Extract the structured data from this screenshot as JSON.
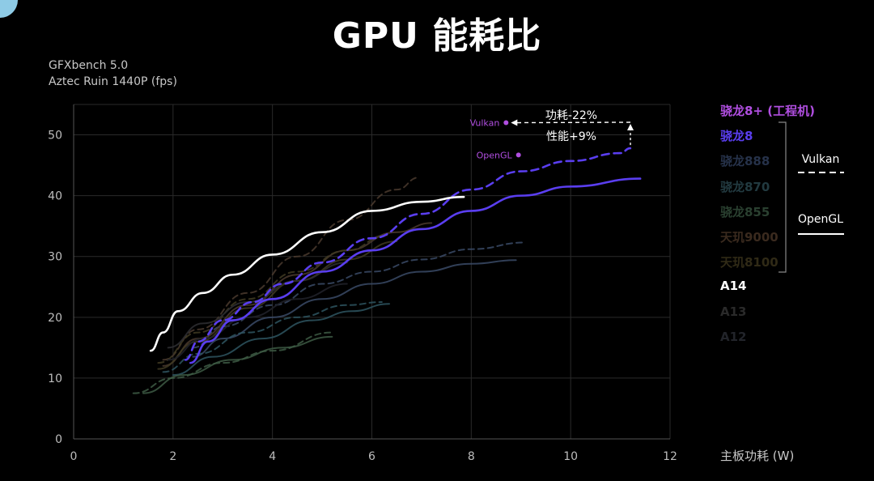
{
  "title": "GPU 能耗比",
  "subtitle": [
    "GFXbench 5.0",
    "Aztec Ruin 1440P (fps)"
  ],
  "chart_data": {
    "type": "line",
    "title": "GPU 能耗比",
    "xlabel": "主板功耗 (W)",
    "ylabel": "",
    "xlim": [
      0,
      12
    ],
    "ylim": [
      0,
      55
    ],
    "xticks": [
      0,
      2,
      4,
      6,
      8,
      10,
      12
    ],
    "yticks": [
      0,
      10,
      20,
      30,
      40,
      50
    ],
    "grid": true,
    "legend_position": "right",
    "series": [
      {
        "name": "骁龙8+ (工程机)",
        "api": "Vulkan",
        "color": "#b04ee0",
        "dash": true,
        "opacity": 1,
        "points": []
      },
      {
        "name": "骁龙8",
        "api": "Vulkan",
        "color": "#5a3ef0",
        "dash": true,
        "opacity": 1,
        "points": [
          [
            2.25,
            13
          ],
          [
            2.5,
            16
          ],
          [
            3.0,
            19.5
          ],
          [
            3.6,
            22.5
          ],
          [
            4.2,
            25.5
          ],
          [
            5.0,
            29
          ],
          [
            6.0,
            33
          ],
          [
            7.0,
            37
          ],
          [
            8.0,
            41
          ],
          [
            9.0,
            44
          ],
          [
            10.0,
            45.7
          ],
          [
            11.0,
            47
          ],
          [
            11.2,
            47.8
          ]
        ]
      },
      {
        "name": "骁龙8",
        "api": "OpenGL",
        "color": "#5a3ef0",
        "dash": false,
        "opacity": 1,
        "points": [
          [
            2.35,
            12.5
          ],
          [
            2.7,
            16
          ],
          [
            3.2,
            19.5
          ],
          [
            4.0,
            23
          ],
          [
            5.0,
            27.5
          ],
          [
            6.0,
            31
          ],
          [
            7.0,
            34.5
          ],
          [
            8.0,
            37.5
          ],
          [
            9.0,
            40
          ],
          [
            10.0,
            41.5
          ],
          [
            11.4,
            42.8
          ]
        ]
      },
      {
        "name": "A14",
        "api": "OpenGL",
        "color": "#ffffff",
        "dash": false,
        "opacity": 1,
        "points": [
          [
            1.55,
            14.5
          ],
          [
            1.8,
            17.5
          ],
          [
            2.1,
            21
          ],
          [
            2.6,
            24
          ],
          [
            3.2,
            27
          ],
          [
            4.0,
            30.3
          ],
          [
            5.0,
            34
          ],
          [
            6.0,
            37.5
          ],
          [
            7.0,
            39
          ],
          [
            7.85,
            39.8
          ]
        ]
      },
      {
        "name": "骁龙888",
        "api": "Vulkan",
        "color": "#3a4a66",
        "dash": true,
        "opacity": 0.85,
        "points": [
          [
            2.4,
            15
          ],
          [
            3.0,
            18.5
          ],
          [
            4.0,
            22
          ],
          [
            5.0,
            25.5
          ],
          [
            6.0,
            27.5
          ],
          [
            7.0,
            29.5
          ],
          [
            8.0,
            31.2
          ],
          [
            9.1,
            32.3
          ]
        ]
      },
      {
        "name": "骁龙888",
        "api": "OpenGL",
        "color": "#3a4a66",
        "dash": false,
        "opacity": 0.85,
        "points": [
          [
            2.4,
            13.5
          ],
          [
            3.0,
            16.5
          ],
          [
            4.0,
            20
          ],
          [
            5.0,
            23
          ],
          [
            6.0,
            25.5
          ],
          [
            7.0,
            27.5
          ],
          [
            8.0,
            28.8
          ],
          [
            8.9,
            29.4
          ]
        ]
      },
      {
        "name": "骁龙870",
        "api": "Vulkan",
        "color": "#2e5560",
        "dash": true,
        "opacity": 0.85,
        "points": [
          [
            1.8,
            11
          ],
          [
            2.5,
            14
          ],
          [
            3.5,
            17.5
          ],
          [
            4.5,
            20
          ],
          [
            5.5,
            22
          ],
          [
            6.2,
            22.5
          ]
        ]
      },
      {
        "name": "骁龙870",
        "api": "OpenGL",
        "color": "#2e5560",
        "dash": false,
        "opacity": 0.85,
        "points": [
          [
            2.0,
            10.5
          ],
          [
            2.8,
            13.5
          ],
          [
            3.8,
            16.5
          ],
          [
            4.8,
            19.5
          ],
          [
            5.6,
            21
          ],
          [
            6.35,
            22.2
          ]
        ]
      },
      {
        "name": "骁龙855",
        "api": "Vulkan",
        "color": "#3d5a44",
        "dash": true,
        "opacity": 0.85,
        "points": [
          [
            1.2,
            7.5
          ],
          [
            2.0,
            10
          ],
          [
            3.0,
            12.5
          ],
          [
            4.0,
            14.5
          ],
          [
            5.2,
            17.5
          ]
        ]
      },
      {
        "name": "骁龙855",
        "api": "OpenGL",
        "color": "#3d5a44",
        "dash": false,
        "opacity": 0.85,
        "points": [
          [
            1.4,
            7.5
          ],
          [
            2.2,
            10.5
          ],
          [
            3.2,
            13
          ],
          [
            4.2,
            15
          ],
          [
            5.2,
            16.8
          ]
        ]
      },
      {
        "name": "天玑9000",
        "api": "Vulkan",
        "color": "#4a3a2e",
        "dash": true,
        "opacity": 0.85,
        "points": [
          [
            1.8,
            13
          ],
          [
            2.5,
            18
          ],
          [
            3.5,
            24
          ],
          [
            4.5,
            30
          ],
          [
            5.5,
            36
          ],
          [
            6.5,
            41
          ],
          [
            6.95,
            43
          ]
        ]
      },
      {
        "name": "天玑9000",
        "api": "OpenGL",
        "color": "#4a3a2e",
        "dash": false,
        "opacity": 0.85,
        "points": [
          [
            1.8,
            12
          ],
          [
            2.5,
            16.5
          ],
          [
            3.5,
            22
          ],
          [
            4.5,
            27
          ],
          [
            5.5,
            31
          ],
          [
            6.5,
            34
          ],
          [
            7.2,
            35.5
          ]
        ]
      },
      {
        "name": "天玑8100",
        "api": "Vulkan",
        "color": "#3f3a22",
        "dash": true,
        "opacity": 0.85,
        "points": [
          [
            1.7,
            12.5
          ],
          [
            2.5,
            17.5
          ],
          [
            3.5,
            23
          ],
          [
            4.5,
            27.5
          ],
          [
            5.5,
            31
          ],
          [
            6.3,
            33.5
          ]
        ]
      },
      {
        "name": "天玑8100",
        "api": "OpenGL",
        "color": "#3f3a22",
        "dash": false,
        "opacity": 0.85,
        "points": [
          [
            1.7,
            11.5
          ],
          [
            2.5,
            16
          ],
          [
            3.5,
            21.5
          ],
          [
            4.5,
            26
          ],
          [
            5.5,
            29.5
          ],
          [
            6.5,
            32.5
          ]
        ]
      },
      {
        "name": "A13",
        "api": "OpenGL",
        "color": "#2c2c30",
        "dash": false,
        "opacity": 0.9,
        "points": [
          [
            1.9,
            15
          ],
          [
            2.6,
            19
          ],
          [
            3.5,
            22.5
          ],
          [
            4.5,
            26
          ],
          [
            5.5,
            29
          ]
        ]
      },
      {
        "name": "A12",
        "api": "OpenGL",
        "color": "#1f2028",
        "dash": false,
        "opacity": 0.9,
        "points": [
          [
            1.9,
            13
          ],
          [
            2.6,
            16.5
          ],
          [
            3.5,
            20
          ],
          [
            4.5,
            23
          ],
          [
            5.5,
            25.5
          ]
        ]
      }
    ],
    "point_labels": [
      {
        "text": "Vulkan",
        "x": 8.7,
        "y": 52.0,
        "color": "#b04ee0"
      },
      {
        "text": "OpenGL",
        "x": 8.95,
        "y": 46.7,
        "color": "#b04ee0"
      }
    ],
    "annotations": {
      "power": "功耗-22%",
      "perf": "性能+9%"
    },
    "legend": [
      {
        "label": "骁龙8+ (工程机)",
        "color": "#b04ee0"
      },
      {
        "label": "骁龙8",
        "color": "#5a3ef0"
      },
      {
        "label": "骁龙888",
        "color": "#26324a"
      },
      {
        "label": "骁龙870",
        "color": "#223a40"
      },
      {
        "label": "骁龙855",
        "color": "#2a4030"
      },
      {
        "label": "天玑9000",
        "color": "#3a2a1e"
      },
      {
        "label": "天玑8100",
        "color": "#302a16"
      },
      {
        "label": "A14",
        "color": "#ffffff"
      },
      {
        "label": "A13",
        "color": "#2a2a2a"
      },
      {
        "label": "A12",
        "color": "#22242a"
      }
    ],
    "style_legend": [
      {
        "label": "Vulkan",
        "dash": true
      },
      {
        "label": "OpenGL",
        "dash": false
      }
    ]
  }
}
